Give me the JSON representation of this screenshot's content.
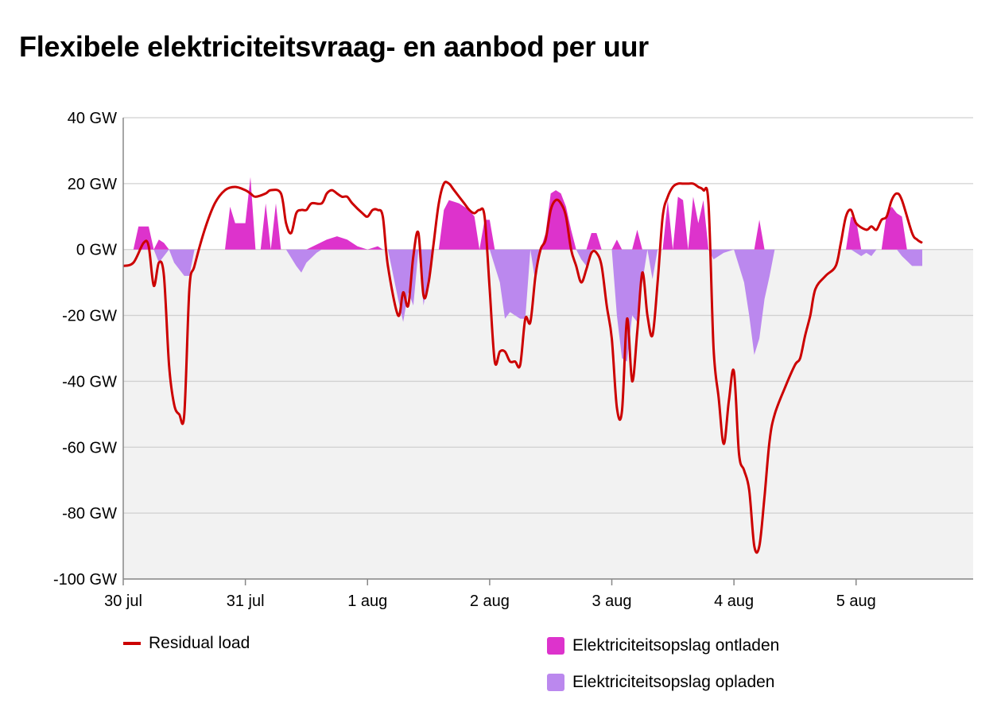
{
  "title": "Flexibele elektriciteitsvraag- en aanbod per uur",
  "colors": {
    "residual": "#cc0000",
    "discharge": "#dd33cc",
    "charge": "#bb88ee",
    "negative_band": "#f2f2f2",
    "grid": "#d0d0d0",
    "axis": "#888888"
  },
  "chart_data": {
    "type": "area",
    "ylabel": "",
    "xlabel": "",
    "yunit": "GW",
    "ylim": [
      -100,
      45
    ],
    "yticks": [
      40,
      20,
      0,
      -20,
      -40,
      -60,
      -80,
      -100
    ],
    "ytick_labels": [
      "40 GW",
      "20 GW",
      "0 GW",
      "-20 GW",
      "-40 GW",
      "-60 GW",
      "-80 GW",
      "-100 GW"
    ],
    "xlim_hours": [
      0,
      167
    ],
    "xticks": [
      {
        "hour": 0,
        "label": "30 jul"
      },
      {
        "hour": 24,
        "label": "31 jul"
      },
      {
        "hour": 48,
        "label": "1 aug"
      },
      {
        "hour": 72,
        "label": "2 aug"
      },
      {
        "hour": 96,
        "label": "3 aug"
      },
      {
        "hour": 120,
        "label": "4 aug"
      },
      {
        "hour": 144,
        "label": "5 aug"
      }
    ],
    "grid": true,
    "legend_position": "bottom",
    "series": [
      {
        "name": "Residual load",
        "kind": "line",
        "points": [
          [
            0,
            -5
          ],
          [
            2,
            -4
          ],
          [
            4,
            2
          ],
          [
            5,
            1
          ],
          [
            6,
            -11
          ],
          [
            7,
            -4
          ],
          [
            8,
            -8
          ],
          [
            9,
            -35
          ],
          [
            10,
            -47
          ],
          [
            11,
            -50
          ],
          [
            12,
            -50
          ],
          [
            13,
            -12
          ],
          [
            14,
            -5
          ],
          [
            16,
            6
          ],
          [
            18,
            14
          ],
          [
            20,
            18
          ],
          [
            22,
            19
          ],
          [
            24,
            18
          ],
          [
            25,
            17
          ],
          [
            26,
            16
          ],
          [
            28,
            17
          ],
          [
            29,
            18
          ],
          [
            31,
            17
          ],
          [
            32,
            8
          ],
          [
            33,
            5
          ],
          [
            34,
            11
          ],
          [
            35,
            12
          ],
          [
            36,
            12
          ],
          [
            37,
            14
          ],
          [
            39,
            14
          ],
          [
            40,
            17
          ],
          [
            41,
            18
          ],
          [
            42,
            17
          ],
          [
            43,
            16
          ],
          [
            44,
            16
          ],
          [
            45,
            14
          ],
          [
            47,
            11
          ],
          [
            48,
            10
          ],
          [
            49,
            12
          ],
          [
            50,
            12
          ],
          [
            51,
            10
          ],
          [
            52,
            -5
          ],
          [
            54,
            -20
          ],
          [
            55,
            -13
          ],
          [
            56,
            -17
          ],
          [
            57,
            -2
          ],
          [
            58,
            5
          ],
          [
            59,
            -14
          ],
          [
            60,
            -10
          ],
          [
            61,
            2
          ],
          [
            62,
            14
          ],
          [
            63,
            20
          ],
          [
            64,
            20
          ],
          [
            65,
            18
          ],
          [
            67,
            14
          ],
          [
            68,
            12
          ],
          [
            69,
            11
          ],
          [
            70,
            12
          ],
          [
            71,
            10
          ],
          [
            72,
            -12
          ],
          [
            73,
            -34
          ],
          [
            74,
            -31
          ],
          [
            75,
            -31
          ],
          [
            76,
            -34
          ],
          [
            77,
            -34
          ],
          [
            78,
            -35
          ],
          [
            79,
            -21
          ],
          [
            80,
            -22
          ],
          [
            81,
            -8
          ],
          [
            82,
            0
          ],
          [
            83,
            3
          ],
          [
            84,
            12
          ],
          [
            85,
            15
          ],
          [
            86,
            14
          ],
          [
            87,
            10
          ],
          [
            88,
            0
          ],
          [
            89,
            -5
          ],
          [
            90,
            -10
          ],
          [
            91,
            -6
          ],
          [
            92,
            -1
          ],
          [
            93,
            -1
          ],
          [
            94,
            -5
          ],
          [
            95,
            -17
          ],
          [
            96,
            -27
          ],
          [
            97,
            -48
          ],
          [
            98,
            -49
          ],
          [
            99,
            -21
          ],
          [
            100,
            -40
          ],
          [
            101,
            -25
          ],
          [
            102,
            -7
          ],
          [
            103,
            -20
          ],
          [
            104,
            -26
          ],
          [
            105,
            -10
          ],
          [
            106,
            10
          ],
          [
            107,
            16
          ],
          [
            108,
            19
          ],
          [
            109,
            20
          ],
          [
            110,
            20
          ],
          [
            111,
            20
          ],
          [
            112,
            20
          ],
          [
            113,
            19
          ],
          [
            114,
            18
          ],
          [
            115,
            14
          ],
          [
            116,
            -30
          ],
          [
            117,
            -45
          ],
          [
            118,
            -59
          ],
          [
            119,
            -46
          ],
          [
            120,
            -37
          ],
          [
            121,
            -62
          ],
          [
            122,
            -67
          ],
          [
            123,
            -73
          ],
          [
            124,
            -90
          ],
          [
            125,
            -90
          ],
          [
            126,
            -75
          ],
          [
            127,
            -58
          ],
          [
            128,
            -50
          ],
          [
            130,
            -42
          ],
          [
            132,
            -35
          ],
          [
            133,
            -33
          ],
          [
            134,
            -26
          ],
          [
            135,
            -20
          ],
          [
            136,
            -12
          ],
          [
            138,
            -8
          ],
          [
            140,
            -5
          ],
          [
            141,
            2
          ],
          [
            142,
            10
          ],
          [
            143,
            12
          ],
          [
            144,
            8
          ],
          [
            146,
            6
          ],
          [
            147,
            7
          ],
          [
            148,
            6
          ],
          [
            149,
            9
          ],
          [
            150,
            10
          ],
          [
            151,
            15
          ],
          [
            152,
            17
          ],
          [
            153,
            15
          ],
          [
            155,
            5
          ],
          [
            156,
            3
          ],
          [
            157,
            2
          ]
        ]
      },
      {
        "name": "Elektriciteitsopslag ontladen",
        "kind": "area",
        "points": [
          [
            0,
            0
          ],
          [
            2,
            0
          ],
          [
            3,
            7
          ],
          [
            5,
            7
          ],
          [
            6,
            0
          ],
          [
            7,
            3
          ],
          [
            8,
            2
          ],
          [
            9,
            0
          ],
          [
            20,
            0
          ],
          [
            21,
            13
          ],
          [
            22,
            8
          ],
          [
            24,
            8
          ],
          [
            25,
            22
          ],
          [
            26,
            0
          ],
          [
            27,
            0
          ],
          [
            28,
            14
          ],
          [
            29,
            0
          ],
          [
            30,
            14
          ],
          [
            31,
            0
          ],
          [
            32,
            0
          ],
          [
            36,
            0
          ],
          [
            40,
            3
          ],
          [
            42,
            4
          ],
          [
            44,
            3
          ],
          [
            46,
            1
          ],
          [
            48,
            0
          ],
          [
            50,
            1
          ],
          [
            51,
            0
          ],
          [
            62,
            0
          ],
          [
            63,
            12
          ],
          [
            64,
            15
          ],
          [
            66,
            14
          ],
          [
            68,
            12
          ],
          [
            69,
            10
          ],
          [
            70,
            0
          ],
          [
            71,
            9
          ],
          [
            72,
            9
          ],
          [
            73,
            0
          ],
          [
            82,
            0
          ],
          [
            83,
            5
          ],
          [
            84,
            17
          ],
          [
            85,
            18
          ],
          [
            86,
            17
          ],
          [
            87,
            13
          ],
          [
            88,
            6
          ],
          [
            89,
            0
          ],
          [
            91,
            0
          ],
          [
            92,
            5
          ],
          [
            93,
            5
          ],
          [
            94,
            0
          ],
          [
            96,
            0
          ],
          [
            97,
            3
          ],
          [
            98,
            0
          ],
          [
            100,
            0
          ],
          [
            101,
            6
          ],
          [
            102,
            0
          ],
          [
            106,
            0
          ],
          [
            107,
            15
          ],
          [
            108,
            0
          ],
          [
            109,
            16
          ],
          [
            110,
            15
          ],
          [
            111,
            0
          ],
          [
            112,
            16
          ],
          [
            113,
            8
          ],
          [
            114,
            15
          ],
          [
            115,
            0
          ],
          [
            124,
            0
          ],
          [
            125,
            9
          ],
          [
            126,
            0
          ],
          [
            142,
            0
          ],
          [
            143,
            10
          ],
          [
            144,
            9
          ],
          [
            145,
            0
          ],
          [
            149,
            0
          ],
          [
            150,
            11
          ],
          [
            151,
            13
          ],
          [
            152,
            11
          ],
          [
            153,
            10
          ],
          [
            154,
            0
          ],
          [
            157,
            0
          ]
        ]
      },
      {
        "name": "Elektriciteitsopslag opladen",
        "kind": "area",
        "points": [
          [
            0,
            0
          ],
          [
            6,
            0
          ],
          [
            7,
            -4
          ],
          [
            9,
            0
          ],
          [
            10,
            -4
          ],
          [
            12,
            -8
          ],
          [
            13,
            -8
          ],
          [
            14,
            0
          ],
          [
            32,
            0
          ],
          [
            34,
            -5
          ],
          [
            35,
            -7
          ],
          [
            36,
            -4
          ],
          [
            38,
            -1
          ],
          [
            39,
            0
          ],
          [
            52,
            0
          ],
          [
            54,
            -15
          ],
          [
            55,
            -22
          ],
          [
            56,
            -13
          ],
          [
            57,
            -17
          ],
          [
            58,
            0
          ],
          [
            59,
            -17
          ],
          [
            60,
            -8
          ],
          [
            61,
            0
          ],
          [
            72,
            0
          ],
          [
            74,
            -10
          ],
          [
            75,
            -21
          ],
          [
            76,
            -19
          ],
          [
            77,
            -20
          ],
          [
            78,
            -21
          ],
          [
            79,
            -21
          ],
          [
            80,
            0
          ],
          [
            81,
            -10
          ],
          [
            82,
            0
          ],
          [
            89,
            0
          ],
          [
            90,
            -3
          ],
          [
            91,
            -5
          ],
          [
            92,
            0
          ],
          [
            96,
            0
          ],
          [
            97,
            -20
          ],
          [
            98,
            -33
          ],
          [
            99,
            -34
          ],
          [
            100,
            -20
          ],
          [
            101,
            -22
          ],
          [
            102,
            -10
          ],
          [
            103,
            0
          ],
          [
            104,
            -9
          ],
          [
            105,
            0
          ],
          [
            115,
            0
          ],
          [
            116,
            -3
          ],
          [
            118,
            -1
          ],
          [
            120,
            0
          ],
          [
            121,
            -5
          ],
          [
            122,
            -10
          ],
          [
            123,
            -20
          ],
          [
            124,
            -32
          ],
          [
            125,
            -27
          ],
          [
            126,
            -15
          ],
          [
            127,
            -8
          ],
          [
            128,
            0
          ],
          [
            143,
            0
          ],
          [
            144,
            -1
          ],
          [
            145,
            -2
          ],
          [
            146,
            -1
          ],
          [
            147,
            -2
          ],
          [
            148,
            0
          ],
          [
            152,
            0
          ],
          [
            153,
            -2
          ],
          [
            155,
            -5
          ],
          [
            157,
            -5
          ]
        ]
      }
    ]
  }
}
